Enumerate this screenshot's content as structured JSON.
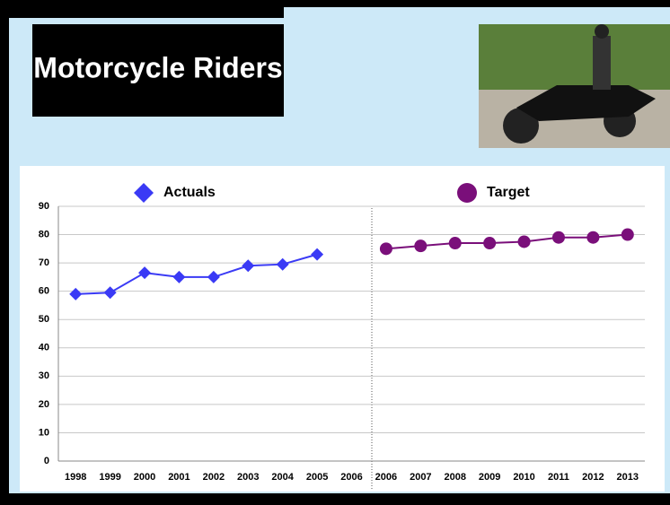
{
  "chart_data": {
    "type": "line",
    "title": "Motorcycle Riders",
    "categories": [
      "1998",
      "1999",
      "2000",
      "2001",
      "2002",
      "2003",
      "2004",
      "2005",
      "2006",
      "2006",
      "2007",
      "2008",
      "2009",
      "2010",
      "2011",
      "2012",
      "2013"
    ],
    "series": [
      {
        "name": "Actuals",
        "color": "#3a3af5",
        "marker": "diamond",
        "values": [
          59,
          59.5,
          66.5,
          65,
          65,
          69,
          69.5,
          73,
          null,
          null,
          null,
          null,
          null,
          null,
          null,
          null,
          null
        ]
      },
      {
        "name": "Target",
        "color": "#7a0f7a",
        "marker": "circle",
        "values": [
          null,
          null,
          null,
          null,
          null,
          null,
          null,
          null,
          null,
          75,
          76,
          77,
          77,
          77.5,
          79,
          79,
          80
        ]
      }
    ],
    "ylim": [
      0,
      90
    ],
    "yticks": [
      0,
      10,
      20,
      30,
      40,
      50,
      60,
      70,
      80,
      90
    ],
    "grid": true
  }
}
